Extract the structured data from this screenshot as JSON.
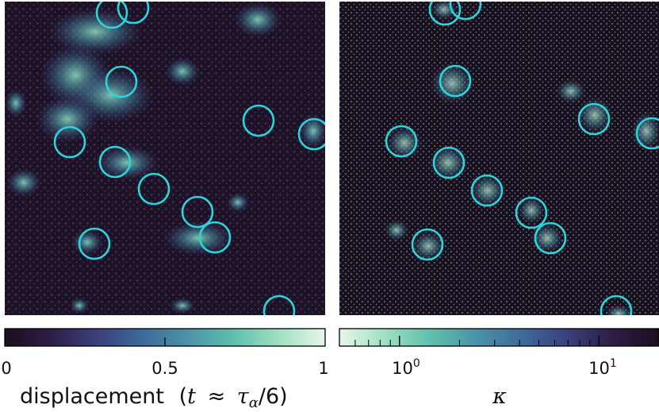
{
  "left_panel": {
    "colormap_stops": [
      "#1a0f1f",
      "#2c1d45",
      "#3a3f7a",
      "#3e6a9a",
      "#4b93a7",
      "#5fbfae",
      "#9fe0c0",
      "#e6f6ea"
    ],
    "tick_labels": [
      "0",
      "0.5",
      "1"
    ],
    "tick_values": [
      0,
      0.5,
      1
    ],
    "label_text": "displacement",
    "label_math_open": "(",
    "label_math_t": "t",
    "label_math_approx": "≈",
    "label_math_tau": "τ",
    "label_math_alpha": "α",
    "label_math_rest": "/6)",
    "highlight_color": "#2ad6dc",
    "background_color": "#1b1222"
  },
  "right_panel": {
    "colormap_stops": [
      "#e6f6ea",
      "#9fe0c0",
      "#5fbfae",
      "#4b93a7",
      "#3e6a9a",
      "#3a3f7a",
      "#2c1d45",
      "#1a0f1f"
    ],
    "scale": "log",
    "range": [
      0.5,
      20
    ],
    "tick_base": "10",
    "tick_exponents": [
      "0",
      "1"
    ],
    "tick_values": [
      1,
      10
    ],
    "label_text": "κ",
    "highlight_color": "#2ad6dc",
    "background_color": "#141018"
  }
}
